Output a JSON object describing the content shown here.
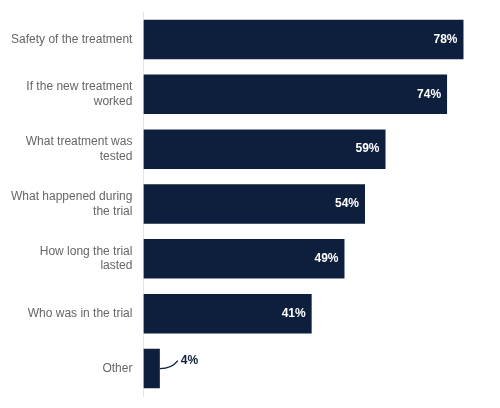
{
  "chart_data": {
    "type": "bar",
    "orientation": "horizontal",
    "categories": [
      "Other",
      "Who was in the trial",
      "How long the trial\nlasted",
      "What happened during\nthe trial",
      "What treatment was\ntested",
      "If the new treatment\nworked",
      "Safety of the treatment"
    ],
    "values": [
      4,
      41,
      49,
      54,
      59,
      74,
      78
    ],
    "value_labels": [
      "4%",
      "41%",
      "49%",
      "54%",
      "59%",
      "74%",
      "78%"
    ],
    "color": "#0d1f3c",
    "xlim": [
      0,
      83
    ],
    "grid": false,
    "data_labels": true,
    "tick_labels": "y"
  }
}
